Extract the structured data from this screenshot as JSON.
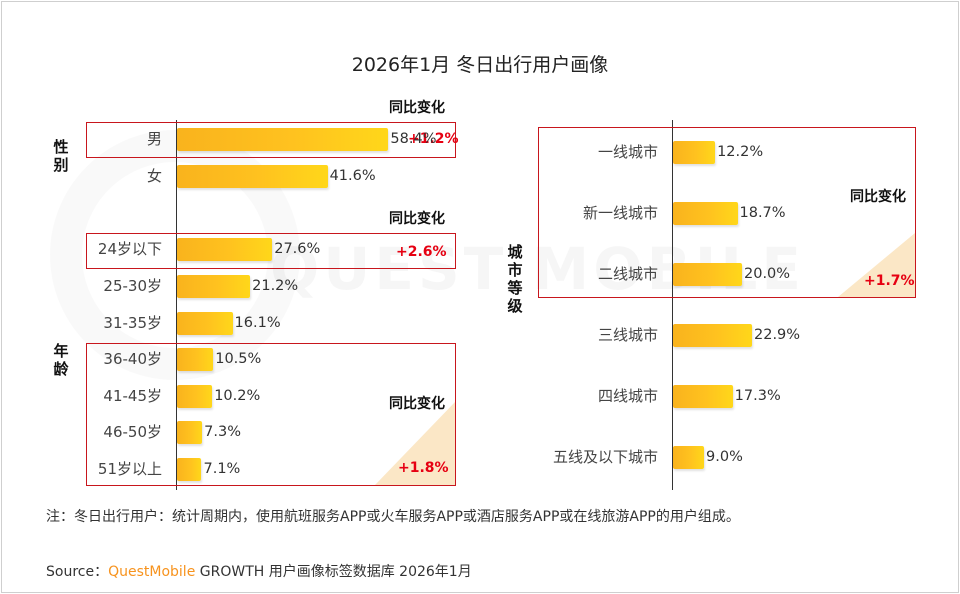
{
  "title": "2026年1月 冬日出行用户画像",
  "chart_data": [
    {
      "type": "bar",
      "orientation": "horizontal",
      "group_label": "性别",
      "categories": [
        "男",
        "女"
      ],
      "values": [
        58.4,
        41.6
      ],
      "value_labels": [
        "58.4%",
        "41.6%"
      ],
      "yoy_header": "同比变化",
      "yoy_change": "+1.2%",
      "yoy_applies_to": "男"
    },
    {
      "type": "bar",
      "orientation": "horizontal",
      "group_label": "年龄",
      "categories": [
        "24岁以下",
        "25-30岁",
        "31-35岁",
        "36-40岁",
        "41-45岁",
        "46-50岁",
        "51岁以上"
      ],
      "values": [
        27.6,
        21.2,
        16.1,
        10.5,
        10.2,
        7.3,
        7.1
      ],
      "value_labels": [
        "27.6%",
        "21.2%",
        "16.1%",
        "10.5%",
        "10.2%",
        "7.3%",
        "7.1%"
      ],
      "yoy_header_1": "同比变化",
      "yoy_change_1": "+2.6%",
      "yoy_applies_to_1": "24岁以下",
      "yoy_header_2": "同比变化",
      "yoy_change_2": "+1.8%",
      "yoy_applies_to_2": "36岁以上"
    },
    {
      "type": "bar",
      "orientation": "horizontal",
      "group_label": "城市等级",
      "categories": [
        "一线城市",
        "新一线城市",
        "二线城市",
        "三线城市",
        "四线城市",
        "五线及以下城市"
      ],
      "values": [
        12.2,
        18.7,
        20.0,
        22.9,
        17.3,
        9.0
      ],
      "value_labels": [
        "12.2%",
        "18.7%",
        "20.0%",
        "22.9%",
        "17.3%",
        "9.0%"
      ],
      "yoy_header": "同比变化",
      "yoy_change": "+1.7%",
      "yoy_applies_to": "一线城市至二线城市"
    }
  ],
  "note": "注：冬日出行用户：统计周期内，使用航班服务APP或火车服务APP或酒店服务APP或在线旅游APP的用户组成。",
  "source": {
    "prefix": "Source：",
    "brand": "QuestMobile",
    "rest": " GROWTH 用户画像标签数据库 2026年1月"
  },
  "watermark": "QUEST MOBILE"
}
